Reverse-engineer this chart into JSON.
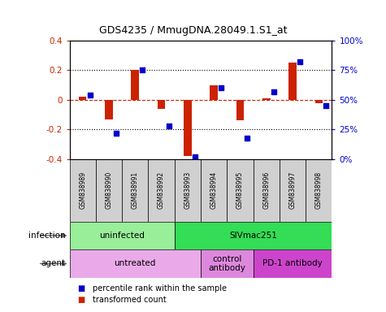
{
  "title": "GDS4235 / MmugDNA.28049.1.S1_at",
  "samples": [
    "GSM838989",
    "GSM838990",
    "GSM838991",
    "GSM838992",
    "GSM838993",
    "GSM838994",
    "GSM838995",
    "GSM838996",
    "GSM838997",
    "GSM838998"
  ],
  "transformed_count": [
    0.02,
    -0.13,
    0.2,
    -0.06,
    -0.38,
    0.1,
    -0.14,
    0.01,
    0.25,
    -0.02
  ],
  "percentile_rank": [
    54,
    22,
    75,
    28,
    2,
    60,
    18,
    57,
    82,
    45
  ],
  "infection_groups": [
    {
      "label": "uninfected",
      "start": 0,
      "end": 4,
      "color": "#99EE99"
    },
    {
      "label": "SIVmac251",
      "start": 4,
      "end": 10,
      "color": "#33DD55"
    }
  ],
  "agent_groups": [
    {
      "label": "untreated",
      "start": 0,
      "end": 5,
      "color": "#EAAAEA"
    },
    {
      "label": "control\nantibody",
      "start": 5,
      "end": 7,
      "color": "#DD88DD"
    },
    {
      "label": "PD-1 antibody",
      "start": 7,
      "end": 10,
      "color": "#CC44CC"
    }
  ],
  "bar_color": "#CC2200",
  "dot_color": "#0000CC",
  "ylim_left": [
    -0.4,
    0.4
  ],
  "ylim_right": [
    0,
    100
  ],
  "yticks_left": [
    -0.4,
    -0.2,
    0.0,
    0.2,
    0.4
  ],
  "yticks_right": [
    0,
    25,
    50,
    75,
    100
  ],
  "ytick_labels_right": [
    "0%",
    "25%",
    "50%",
    "75%",
    "100%"
  ],
  "dotted_lines": [
    -0.2,
    0.2
  ],
  "legend_items": [
    {
      "label": "transformed count",
      "color": "#CC2200"
    },
    {
      "label": "percentile rank within the sample",
      "color": "#0000CC"
    }
  ],
  "infection_label": "infection",
  "agent_label": "agent"
}
